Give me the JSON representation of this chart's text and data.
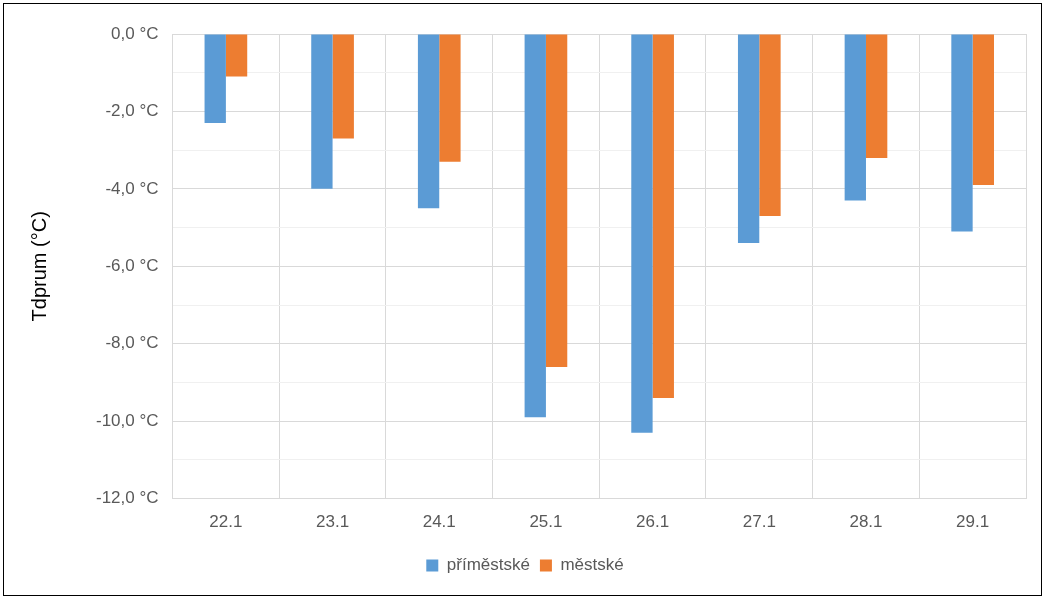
{
  "chart_data": {
    "type": "bar",
    "ylabel": "Tdprum (°C)",
    "categories": [
      "22.1",
      "23.1",
      "24.1",
      "25.1",
      "26.1",
      "27.1",
      "28.1",
      "29.1"
    ],
    "series": [
      {
        "name": "příměstské",
        "color": "#5b9bd5",
        "values": [
          -2.3,
          -4.0,
          -4.5,
          -9.9,
          -10.3,
          -5.4,
          -4.3,
          -5.1
        ]
      },
      {
        "name": "městské",
        "color": "#ed7d31",
        "values": [
          -1.1,
          -2.7,
          -3.3,
          -8.6,
          -9.4,
          -4.7,
          -3.2,
          -3.9
        ]
      }
    ],
    "ylim": [
      -12,
      0
    ],
    "yticks": [
      {
        "value": -12,
        "label": "-12,0 °C"
      },
      {
        "value": -11,
        "label": null
      },
      {
        "value": -10,
        "label": "-10,0 °C"
      },
      {
        "value": -9,
        "label": null
      },
      {
        "value": -8,
        "label": "-8,0 °C"
      },
      {
        "value": -7,
        "label": null
      },
      {
        "value": -6,
        "label": "-6,0 °C"
      },
      {
        "value": -5,
        "label": null
      },
      {
        "value": -4,
        "label": "-4,0 °C"
      },
      {
        "value": -3,
        "label": null
      },
      {
        "value": -2,
        "label": "-2,0 °C"
      },
      {
        "value": -1,
        "label": null
      },
      {
        "value": 0,
        "label": "0,0 °C"
      }
    ],
    "grid": true,
    "legend": "bottom"
  }
}
